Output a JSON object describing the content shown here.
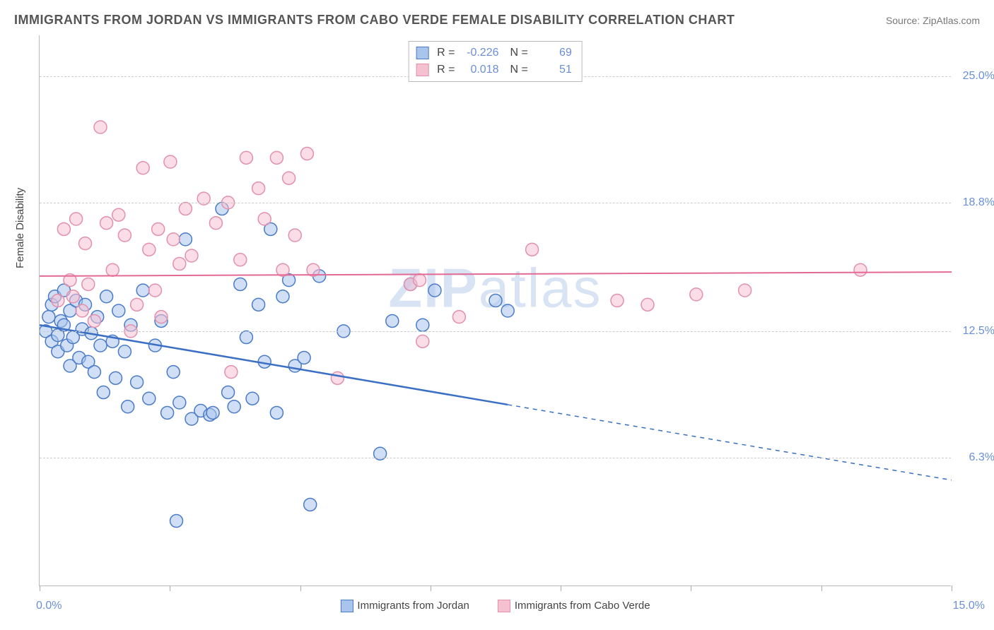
{
  "header": {
    "title": "IMMIGRANTS FROM JORDAN VS IMMIGRANTS FROM CABO VERDE FEMALE DISABILITY CORRELATION CHART",
    "source_prefix": "Source: ",
    "source_name": "ZipAtlas.com"
  },
  "chart": {
    "type": "scatter",
    "ylabel": "Female Disability",
    "background_color": "#ffffff",
    "grid_color": "#cccccc",
    "axis_color": "#bbbbbb",
    "tick_label_color": "#6a8fd8",
    "xlim": [
      0,
      15
    ],
    "ylim": [
      0,
      27
    ],
    "x_ticks": [
      0,
      2.14,
      4.29,
      6.43,
      8.57,
      10.71,
      12.86,
      15
    ],
    "x_tick_labels": {
      "left": "0.0%",
      "right": "15.0%"
    },
    "y_gridlines": [
      6.3,
      12.5,
      18.8,
      25.0
    ],
    "y_tick_labels": [
      "6.3%",
      "12.5%",
      "18.8%",
      "25.0%"
    ],
    "watermark": {
      "zip": "ZIP",
      "atlas": "atlas"
    }
  },
  "series": [
    {
      "name": "Immigrants from Jordan",
      "color_fill": "#a9c5ec",
      "color_stroke": "#4a7bc8",
      "fill_opacity": 0.55,
      "marker_radius": 9,
      "R": "-0.226",
      "N": "69",
      "regression": {
        "x1": 0,
        "y1": 12.8,
        "x2": 15,
        "y2": 5.2,
        "solid_until_x": 7.7,
        "color": "#3a6fc4",
        "width": 2.5
      },
      "points": [
        [
          0.1,
          12.5
        ],
        [
          0.15,
          13.2
        ],
        [
          0.2,
          12.0
        ],
        [
          0.2,
          13.8
        ],
        [
          0.25,
          14.2
        ],
        [
          0.3,
          12.3
        ],
        [
          0.3,
          11.5
        ],
        [
          0.35,
          13.0
        ],
        [
          0.4,
          12.8
        ],
        [
          0.4,
          14.5
        ],
        [
          0.45,
          11.8
        ],
        [
          0.5,
          13.5
        ],
        [
          0.5,
          10.8
        ],
        [
          0.55,
          12.2
        ],
        [
          0.6,
          14.0
        ],
        [
          0.65,
          11.2
        ],
        [
          0.7,
          12.6
        ],
        [
          0.75,
          13.8
        ],
        [
          0.8,
          11.0
        ],
        [
          0.85,
          12.4
        ],
        [
          0.9,
          10.5
        ],
        [
          0.95,
          13.2
        ],
        [
          1.0,
          11.8
        ],
        [
          1.05,
          9.5
        ],
        [
          1.1,
          14.2
        ],
        [
          1.2,
          12.0
        ],
        [
          1.25,
          10.2
        ],
        [
          1.3,
          13.5
        ],
        [
          1.4,
          11.5
        ],
        [
          1.45,
          8.8
        ],
        [
          1.5,
          12.8
        ],
        [
          1.6,
          10.0
        ],
        [
          1.7,
          14.5
        ],
        [
          1.8,
          9.2
        ],
        [
          1.9,
          11.8
        ],
        [
          2.0,
          13.0
        ],
        [
          2.1,
          8.5
        ],
        [
          2.2,
          10.5
        ],
        [
          2.25,
          3.2
        ],
        [
          2.3,
          9.0
        ],
        [
          2.4,
          17.0
        ],
        [
          2.5,
          8.2
        ],
        [
          2.65,
          8.6
        ],
        [
          2.8,
          8.4
        ],
        [
          2.85,
          8.5
        ],
        [
          3.0,
          18.5
        ],
        [
          3.1,
          9.5
        ],
        [
          3.2,
          8.8
        ],
        [
          3.3,
          14.8
        ],
        [
          3.4,
          12.2
        ],
        [
          3.5,
          9.2
        ],
        [
          3.6,
          13.8
        ],
        [
          3.7,
          11.0
        ],
        [
          3.8,
          17.5
        ],
        [
          3.9,
          8.5
        ],
        [
          4.0,
          14.2
        ],
        [
          4.1,
          15.0
        ],
        [
          4.2,
          10.8
        ],
        [
          4.35,
          11.2
        ],
        [
          4.45,
          4.0
        ],
        [
          4.6,
          15.2
        ],
        [
          5.0,
          12.5
        ],
        [
          5.6,
          6.5
        ],
        [
          5.8,
          13.0
        ],
        [
          6.1,
          14.8
        ],
        [
          6.3,
          12.8
        ],
        [
          6.5,
          14.5
        ],
        [
          7.5,
          14.0
        ],
        [
          7.7,
          13.5
        ]
      ]
    },
    {
      "name": "Immigrants from Cabo Verde",
      "color_fill": "#f5c1d1",
      "color_stroke": "#e390ad",
      "fill_opacity": 0.55,
      "marker_radius": 9,
      "R": "0.018",
      "N": "51",
      "regression": {
        "x1": 0,
        "y1": 15.2,
        "x2": 15,
        "y2": 15.4,
        "solid_until_x": 15,
        "color": "#e36a94",
        "width": 2
      },
      "points": [
        [
          0.3,
          14.0
        ],
        [
          0.4,
          17.5
        ],
        [
          0.5,
          15.0
        ],
        [
          0.55,
          14.2
        ],
        [
          0.6,
          18.0
        ],
        [
          0.7,
          13.5
        ],
        [
          0.75,
          16.8
        ],
        [
          0.8,
          14.8
        ],
        [
          0.9,
          13.0
        ],
        [
          1.0,
          22.5
        ],
        [
          1.1,
          17.8
        ],
        [
          1.2,
          15.5
        ],
        [
          1.3,
          18.2
        ],
        [
          1.4,
          17.2
        ],
        [
          1.5,
          12.5
        ],
        [
          1.6,
          13.8
        ],
        [
          1.7,
          20.5
        ],
        [
          1.8,
          16.5
        ],
        [
          1.9,
          14.5
        ],
        [
          1.95,
          17.5
        ],
        [
          2.0,
          13.2
        ],
        [
          2.15,
          20.8
        ],
        [
          2.2,
          17.0
        ],
        [
          2.3,
          15.8
        ],
        [
          2.4,
          18.5
        ],
        [
          2.5,
          16.2
        ],
        [
          2.7,
          19.0
        ],
        [
          2.9,
          17.8
        ],
        [
          3.1,
          18.8
        ],
        [
          3.15,
          10.5
        ],
        [
          3.3,
          16.0
        ],
        [
          3.4,
          21.0
        ],
        [
          3.6,
          19.5
        ],
        [
          3.7,
          18.0
        ],
        [
          3.9,
          21.0
        ],
        [
          4.0,
          15.5
        ],
        [
          4.1,
          20.0
        ],
        [
          4.2,
          17.2
        ],
        [
          4.4,
          21.2
        ],
        [
          4.5,
          15.5
        ],
        [
          4.9,
          10.2
        ],
        [
          6.1,
          14.8
        ],
        [
          6.25,
          15.0
        ],
        [
          6.3,
          12.0
        ],
        [
          6.9,
          13.2
        ],
        [
          8.1,
          16.5
        ],
        [
          9.5,
          14.0
        ],
        [
          10.0,
          13.8
        ],
        [
          10.8,
          14.3
        ],
        [
          11.6,
          14.5
        ],
        [
          13.5,
          15.5
        ]
      ]
    }
  ],
  "bottom_legend": {
    "items": [
      {
        "label": "Immigrants from Jordan",
        "fill": "#a9c5ec",
        "stroke": "#4a7bc8"
      },
      {
        "label": "Immigrants from Cabo Verde",
        "fill": "#f5c1d1",
        "stroke": "#e390ad"
      }
    ]
  }
}
